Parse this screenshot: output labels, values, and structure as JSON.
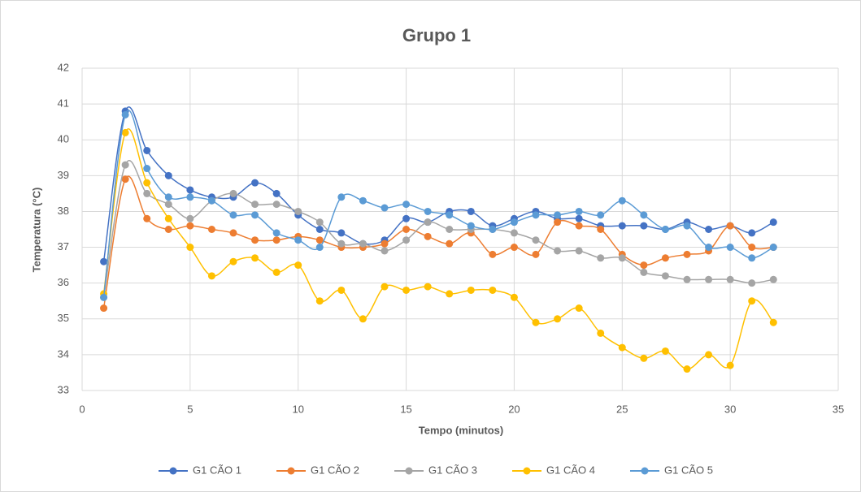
{
  "chart_data": {
    "type": "line",
    "title": "Grupo 1",
    "x_label": "Tempo (minutos)",
    "y_label": "Temperatura (°C)",
    "x": [
      1,
      2,
      3,
      4,
      5,
      6,
      7,
      8,
      9,
      10,
      11,
      12,
      13,
      14,
      15,
      16,
      17,
      18,
      19,
      20,
      21,
      22,
      23,
      24,
      25,
      26,
      27,
      28,
      29,
      30,
      31,
      32
    ],
    "series": [
      {
        "name": "G1 CÃO 1",
        "color": "#4472c4",
        "values": [
          36.6,
          40.8,
          39.7,
          39.0,
          38.6,
          38.4,
          38.4,
          38.8,
          38.5,
          37.9,
          37.5,
          37.4,
          37.1,
          37.2,
          37.8,
          37.7,
          38.0,
          38.0,
          37.6,
          37.8,
          38.0,
          37.8,
          37.8,
          37.6,
          37.6,
          37.6,
          37.5,
          37.7,
          37.5,
          37.6,
          37.4,
          37.7
        ]
      },
      {
        "name": "G1 CÃO 2",
        "color": "#ed7d31",
        "values": [
          35.3,
          38.9,
          37.8,
          37.5,
          37.6,
          37.5,
          37.4,
          37.2,
          37.2,
          37.3,
          37.2,
          37.0,
          37.0,
          37.1,
          37.5,
          37.3,
          37.1,
          37.4,
          36.8,
          37.0,
          36.8,
          37.7,
          37.6,
          37.5,
          36.8,
          36.5,
          36.7,
          36.8,
          36.9,
          37.6,
          37.0,
          37.0
        ]
      },
      {
        "name": "G1 CÃO 3",
        "color": "#a5a5a5",
        "values": [
          35.6,
          39.3,
          38.5,
          38.2,
          37.8,
          38.3,
          38.5,
          38.2,
          38.2,
          38.0,
          37.7,
          37.1,
          37.1,
          36.9,
          37.2,
          37.7,
          37.5,
          37.5,
          37.5,
          37.4,
          37.2,
          36.9,
          36.9,
          36.7,
          36.7,
          36.3,
          36.2,
          36.1,
          36.1,
          36.1,
          36.0,
          36.1
        ]
      },
      {
        "name": "G1 CÃO 4",
        "color": "#ffc000",
        "values": [
          35.7,
          40.2,
          38.8,
          37.8,
          37.0,
          36.2,
          36.6,
          36.7,
          36.3,
          36.5,
          35.5,
          35.8,
          35.0,
          35.9,
          35.8,
          35.9,
          35.7,
          35.8,
          35.8,
          35.6,
          34.9,
          35.0,
          35.3,
          34.6,
          34.2,
          33.9,
          34.1,
          33.6,
          34.0,
          33.7,
          35.5,
          34.9
        ]
      },
      {
        "name": "G1 CÃO 5",
        "color": "#5b9bd5",
        "values": [
          35.6,
          40.7,
          39.2,
          38.4,
          38.4,
          38.3,
          37.9,
          37.9,
          37.4,
          37.2,
          37.0,
          38.4,
          38.3,
          38.1,
          38.2,
          38.0,
          37.9,
          37.6,
          37.5,
          37.7,
          37.9,
          37.9,
          38.0,
          37.9,
          38.3,
          37.9,
          37.5,
          37.6,
          37.0,
          37.0,
          36.7,
          37.0
        ]
      }
    ],
    "xlim": [
      0,
      35
    ],
    "xticks": [
      0,
      5,
      10,
      15,
      20,
      25,
      30,
      35
    ],
    "ylim": [
      33,
      42
    ],
    "yticks": [
      33,
      34,
      35,
      36,
      37,
      38,
      39,
      40,
      41,
      42
    ],
    "grid": true,
    "legend": "bottom"
  }
}
